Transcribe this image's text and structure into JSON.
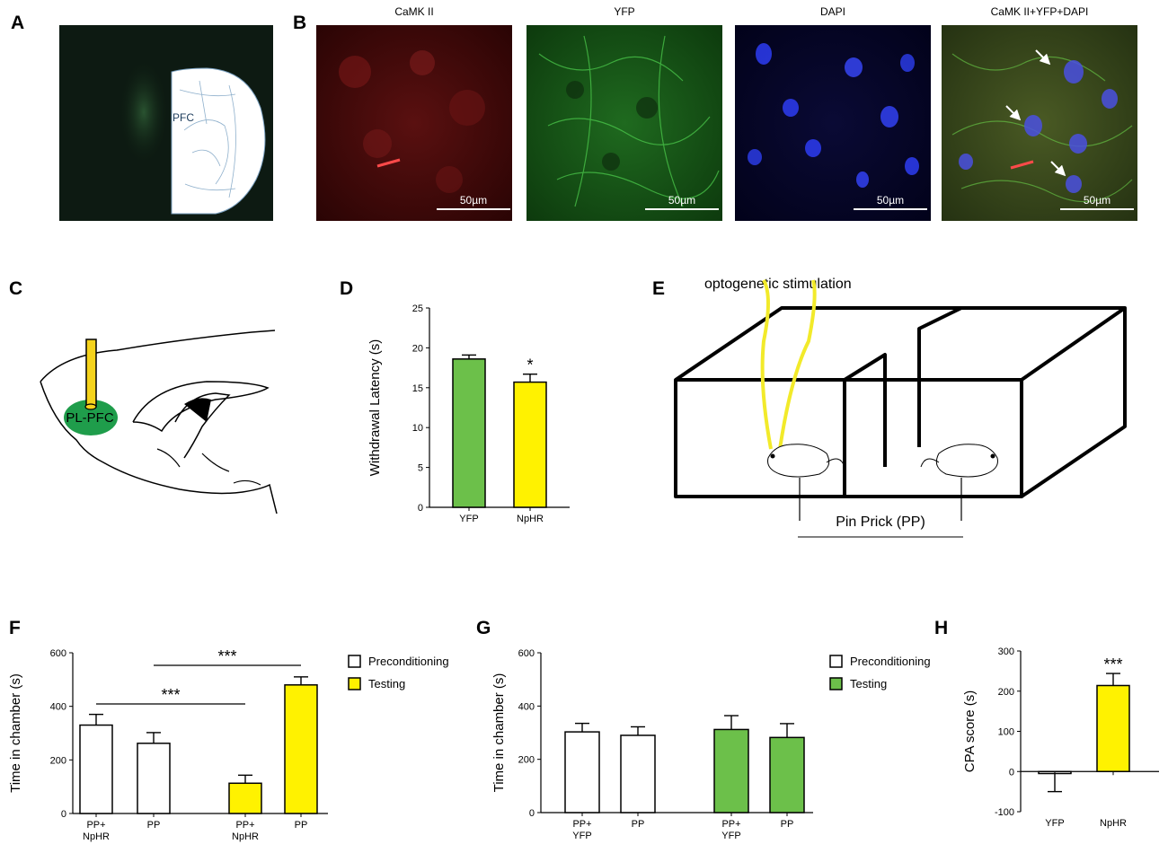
{
  "panel_letters": {
    "A": "A",
    "B": "B",
    "C": "C",
    "D": "D",
    "E": "E",
    "F": "F",
    "G": "G",
    "H": "H"
  },
  "panel_a": {
    "region_label": "PFC"
  },
  "panel_b": {
    "channels": [
      {
        "title": "CaMK II",
        "scale_bar": "50µm",
        "color": "#e02424"
      },
      {
        "title": "YFP",
        "scale_bar": "50µm",
        "color": "#22b022"
      },
      {
        "title": "DAPI",
        "scale_bar": "50µm",
        "color": "#2a3de0"
      },
      {
        "title": "CaMK II+YFP+DAPI",
        "scale_bar": "50µm",
        "color": "#6b8a3a"
      }
    ]
  },
  "panel_c": {
    "region_label": "PL-PFC",
    "fiber_color": "#f5d31c",
    "region_color": "#1f9d4b"
  },
  "panel_e": {
    "label_top": "optogenetic stimulation",
    "label_bottom": "Pin Prick (PP)"
  },
  "colors": {
    "green_bar": "#6cc04a",
    "yellow_bar": "#fff200",
    "white_bar": "#ffffff",
    "fiber": "#f2ea2a"
  },
  "chart_data": [
    {
      "id": "D",
      "type": "bar",
      "categories": [
        "YFP",
        "NpHR"
      ],
      "values": [
        18.6,
        15.7
      ],
      "errors": [
        0.5,
        1.0
      ],
      "colors": [
        "#6cc04a",
        "#fff200"
      ],
      "ylabel": "Withdrawal Latency (s)",
      "ylim": [
        0,
        25
      ],
      "yticks": [
        "0",
        "5",
        "10",
        "15",
        "20",
        "25"
      ],
      "annotations": [
        {
          "text": "*",
          "category": "NpHR"
        }
      ]
    },
    {
      "id": "F",
      "type": "bar",
      "categories": [
        "PP+\nNpHR",
        "PP",
        "PP+\nNpHR",
        "PP"
      ],
      "values": [
        330,
        262,
        113,
        480
      ],
      "errors": [
        40,
        40,
        30,
        30
      ],
      "colors": [
        "#ffffff",
        "#ffffff",
        "#fff200",
        "#fff200"
      ],
      "ylabel": "Time in chamber (s)",
      "ylim": [
        0,
        600
      ],
      "yticks": [
        "0",
        "200",
        "400",
        "600"
      ],
      "legend": [
        {
          "label": "Preconditioning",
          "color": "#ffffff"
        },
        {
          "label": "Testing",
          "color": "#fff200"
        }
      ],
      "legend_position": "right",
      "significance": [
        {
          "text": "***",
          "from": 0,
          "to": 2
        },
        {
          "text": "***",
          "from": 1,
          "to": 3
        }
      ]
    },
    {
      "id": "G",
      "type": "bar",
      "categories": [
        "PP+\nYFP",
        "PP",
        "PP+\nYFP",
        "PP"
      ],
      "values": [
        303,
        290,
        312,
        282
      ],
      "errors": [
        32,
        32,
        52,
        52
      ],
      "colors": [
        "#ffffff",
        "#ffffff",
        "#6cc04a",
        "#6cc04a"
      ],
      "ylabel": "Time in chamber (s)",
      "ylim": [
        0,
        600
      ],
      "yticks": [
        "0",
        "200",
        "400",
        "600"
      ],
      "legend": [
        {
          "label": "Preconditioning",
          "color": "#ffffff"
        },
        {
          "label": "Testing",
          "color": "#6cc04a"
        }
      ],
      "legend_position": "right"
    },
    {
      "id": "H",
      "type": "bar",
      "categories": [
        "YFP",
        "NpHR"
      ],
      "values": [
        -5,
        214
      ],
      "errors": [
        45,
        30
      ],
      "colors": [
        "#ffffff",
        "#fff200"
      ],
      "ylabel": "CPA score (s)",
      "ylim": [
        -100,
        300
      ],
      "yticks": [
        "-100",
        "0",
        "100",
        "200",
        "300"
      ],
      "annotations": [
        {
          "text": "***",
          "category": "NpHR"
        }
      ]
    }
  ]
}
